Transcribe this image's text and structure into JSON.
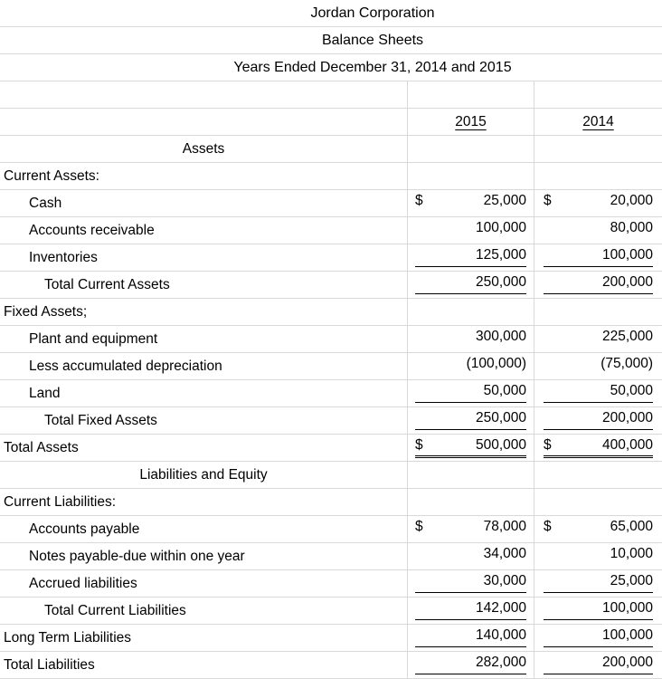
{
  "titles": {
    "company": "Jordan Corporation",
    "report": "Balance Sheets",
    "period": "Years Ended December 31, 2014 and 2015"
  },
  "columns": {
    "year_2015": "2015",
    "year_2014": "2014"
  },
  "colors": {
    "text": "#000000",
    "background": "#ffffff",
    "gridline": "#d9d9d9"
  },
  "rows": [
    {
      "label": "Assets",
      "align": "center",
      "indent": 0,
      "d1": "",
      "v1": "",
      "d2": "",
      "v2": "",
      "underline": "none"
    },
    {
      "label": "Current Assets:",
      "align": "left",
      "indent": 0,
      "d1": "",
      "v1": "",
      "d2": "",
      "v2": "",
      "underline": "none"
    },
    {
      "label": "Cash",
      "align": "left",
      "indent": 1,
      "d1": "$",
      "v1": "25,000",
      "d2": "$",
      "v2": "20,000",
      "underline": "none"
    },
    {
      "label": "Accounts receivable",
      "align": "left",
      "indent": 1,
      "d1": "",
      "v1": "100,000",
      "d2": "",
      "v2": "80,000",
      "underline": "none"
    },
    {
      "label": "Inventories",
      "align": "left",
      "indent": 1,
      "d1": "",
      "v1": "125,000",
      "d2": "",
      "v2": "100,000",
      "underline": "single"
    },
    {
      "label": "Total Current Assets",
      "align": "left",
      "indent": 2,
      "d1": "",
      "v1": "250,000",
      "d2": "",
      "v2": "200,000",
      "underline": "single"
    },
    {
      "label": "Fixed Assets;",
      "align": "left",
      "indent": 0,
      "d1": "",
      "v1": "",
      "d2": "",
      "v2": "",
      "underline": "none"
    },
    {
      "label": "Plant and equipment",
      "align": "left",
      "indent": 1,
      "d1": "",
      "v1": "300,000",
      "d2": "",
      "v2": "225,000",
      "underline": "none"
    },
    {
      "label": "Less accumulated depreciation",
      "align": "left",
      "indent": 1,
      "d1": "",
      "v1": "(100,000)",
      "d2": "",
      "v2": "(75,000)",
      "underline": "none"
    },
    {
      "label": "Land",
      "align": "left",
      "indent": 1,
      "d1": "",
      "v1": "50,000",
      "d2": "",
      "v2": "50,000",
      "underline": "single"
    },
    {
      "label": "Total Fixed Assets",
      "align": "left",
      "indent": 2,
      "d1": "",
      "v1": "250,000",
      "d2": "",
      "v2": "200,000",
      "underline": "single"
    },
    {
      "label": "Total Assets",
      "align": "left",
      "indent": 0,
      "d1": "$",
      "v1": "500,000",
      "d2": "$",
      "v2": "400,000",
      "underline": "double"
    },
    {
      "label": "Liabilities and Equity",
      "align": "center",
      "indent": 0,
      "d1": "",
      "v1": "",
      "d2": "",
      "v2": "",
      "underline": "none"
    },
    {
      "label": "Current Liabilities:",
      "align": "left",
      "indent": 0,
      "d1": "",
      "v1": "",
      "d2": "",
      "v2": "",
      "underline": "none"
    },
    {
      "label": "Accounts payable",
      "align": "left",
      "indent": 1,
      "d1": "$",
      "v1": "78,000",
      "d2": "$",
      "v2": "65,000",
      "underline": "none"
    },
    {
      "label": "Notes payable-due within one year",
      "align": "left",
      "indent": 1,
      "d1": "",
      "v1": "34,000",
      "d2": "",
      "v2": "10,000",
      "underline": "none"
    },
    {
      "label": "Accrued liabilities",
      "align": "left",
      "indent": 1,
      "d1": "",
      "v1": "30,000",
      "d2": "",
      "v2": "25,000",
      "underline": "single"
    },
    {
      "label": "Total Current Liabilities",
      "align": "left",
      "indent": 2,
      "d1": "",
      "v1": "142,000",
      "d2": "",
      "v2": "100,000",
      "underline": "single"
    },
    {
      "label": "Long Term Liabilities",
      "align": "left",
      "indent": 0,
      "d1": "",
      "v1": "140,000",
      "d2": "",
      "v2": "100,000",
      "underline": "single"
    },
    {
      "label": "Total Liabilities",
      "align": "left",
      "indent": 0,
      "d1": "",
      "v1": "282,000",
      "d2": "",
      "v2": "200,000",
      "underline": "single"
    }
  ]
}
